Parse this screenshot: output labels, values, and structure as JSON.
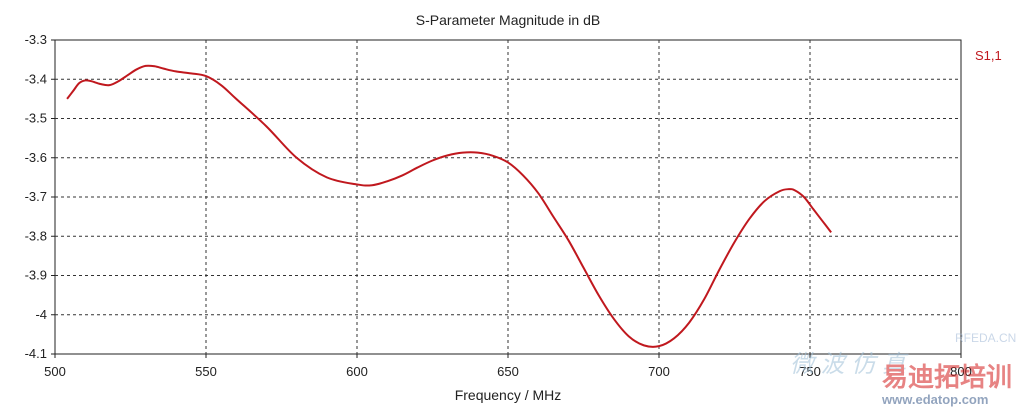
{
  "chart_data": {
    "type": "line",
    "title": "S-Parameter Magnitude in dB",
    "xlabel": "Frequency / MHz",
    "ylabel": "",
    "xlim": [
      500,
      800
    ],
    "ylim": [
      -4.1,
      -3.3
    ],
    "x_ticks": [
      500,
      550,
      600,
      650,
      700,
      750,
      800
    ],
    "y_ticks": [
      -3.3,
      -3.4,
      -3.5,
      -3.6,
      -3.7,
      -3.8,
      -3.9,
      -4,
      -4.1
    ],
    "x_tick_labels": [
      "500",
      "550",
      "600",
      "650",
      "700",
      "750",
      "800"
    ],
    "y_tick_labels": [
      "-3.3",
      "-3.4",
      "-3.5",
      "-3.6",
      "-3.7",
      "-3.8",
      "-3.9",
      "-4",
      "-4.1"
    ],
    "grid": true,
    "legend_position": "top-right",
    "series": [
      {
        "name": "S1,1",
        "color": "#c0181e",
        "x": [
          504,
          506,
          508,
          510,
          512,
          515,
          518,
          521,
          524,
          527,
          530,
          533,
          536,
          540,
          545,
          550,
          555,
          560,
          570,
          580,
          590,
          600,
          605,
          610,
          615,
          620,
          625,
          630,
          635,
          640,
          645,
          650,
          655,
          660,
          665,
          670,
          675,
          680,
          685,
          690,
          695,
          700,
          705,
          710,
          715,
          720,
          725,
          730,
          735,
          740,
          743,
          745,
          748,
          751,
          754,
          757
        ],
        "y": [
          -3.45,
          -3.43,
          -3.41,
          -3.403,
          -3.405,
          -3.412,
          -3.415,
          -3.405,
          -3.39,
          -3.375,
          -3.366,
          -3.367,
          -3.373,
          -3.38,
          -3.385,
          -3.392,
          -3.415,
          -3.45,
          -3.52,
          -3.6,
          -3.65,
          -3.668,
          -3.67,
          -3.66,
          -3.645,
          -3.625,
          -3.607,
          -3.594,
          -3.587,
          -3.587,
          -3.595,
          -3.612,
          -3.645,
          -3.69,
          -3.75,
          -3.81,
          -3.88,
          -3.95,
          -4.01,
          -4.055,
          -4.078,
          -4.08,
          -4.06,
          -4.02,
          -3.96,
          -3.885,
          -3.815,
          -3.755,
          -3.71,
          -3.685,
          -3.68,
          -3.683,
          -3.7,
          -3.73,
          -3.76,
          -3.79
        ]
      }
    ]
  },
  "watermark": {
    "line1": "RFEDA.CN",
    "line2": "易迪拓培训",
    "line3": "www.edatop.com",
    "line4": "微 波 仿 真"
  }
}
